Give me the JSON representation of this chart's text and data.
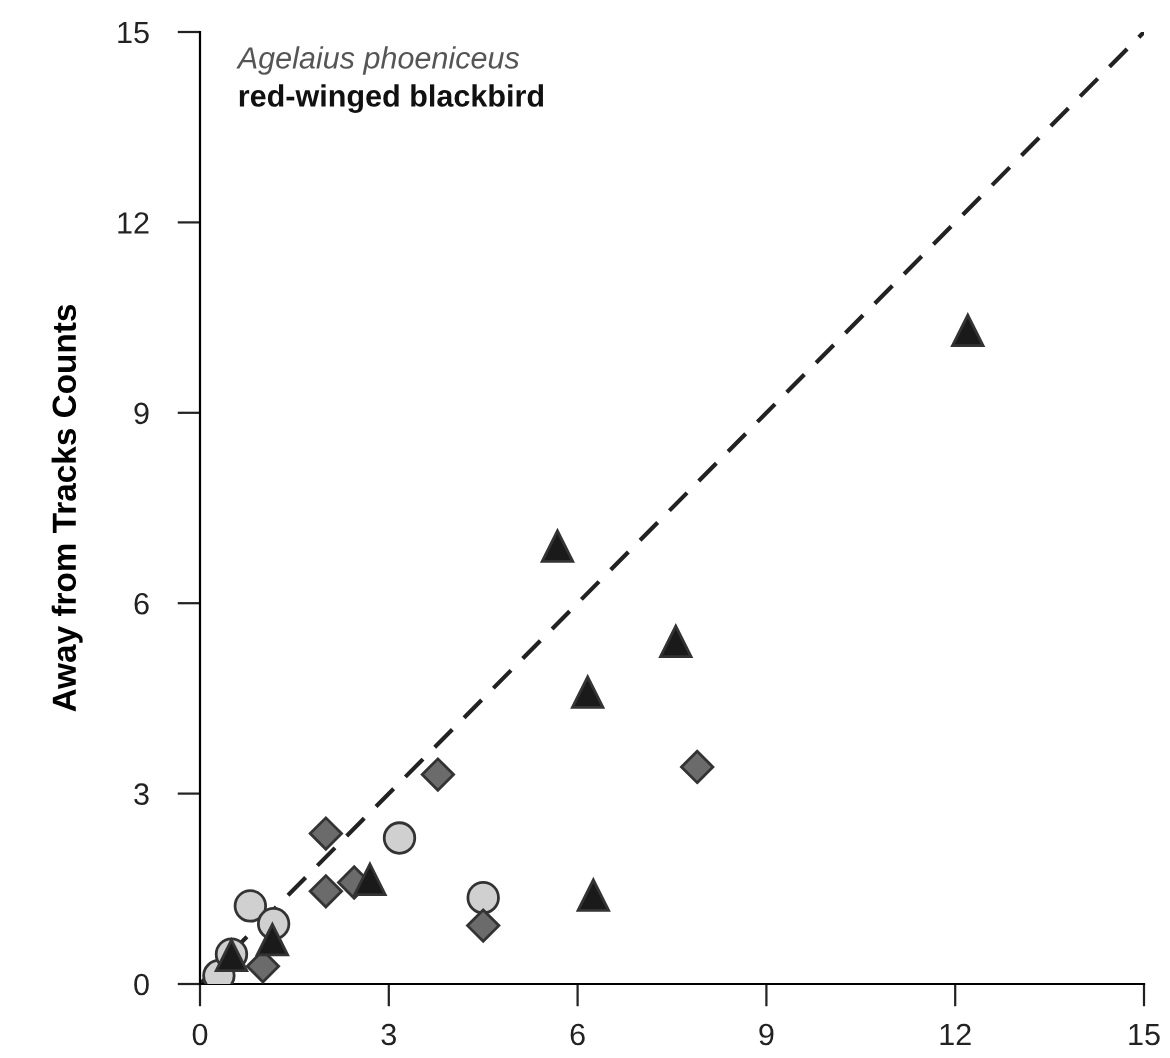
{
  "chart_data": {
    "type": "scatter",
    "title": "Agelaius phoeniceus",
    "subtitle": "red-winged blackbird",
    "ylabel": "Away from Tracks Counts",
    "xlim": [
      0,
      15
    ],
    "ylim": [
      0,
      15
    ],
    "xticks": [
      0,
      3,
      6,
      9,
      12,
      15
    ],
    "yticks": [
      0,
      3,
      6,
      9,
      12,
      15
    ],
    "grid": false,
    "legend": false,
    "series": [
      {
        "type": "line",
        "color": "#222222",
        "line_style": "dashed",
        "marker": "none",
        "x": [
          0,
          15
        ],
        "values": [
          0,
          15
        ]
      },
      {
        "color": "#1a1a1a",
        "marker": "triangle",
        "x": [
          5.68,
          6.16,
          7.56,
          6.25,
          12.2,
          2.7,
          1.15,
          0.5
        ],
        "values": [
          6.9,
          4.6,
          5.4,
          1.4,
          10.3,
          1.65,
          0.7,
          0.45
        ]
      },
      {
        "color": "#6b6b6b",
        "marker": "diamond",
        "x": [
          2.0,
          2.0,
          2.45,
          3.78,
          4.5,
          1.0,
          7.9
        ],
        "values": [
          2.37,
          1.46,
          1.6,
          3.3,
          0.92,
          0.28,
          3.42
        ]
      },
      {
        "color": "#d0d0d0",
        "marker": "circle",
        "x": [
          0.3,
          0.5,
          0.8,
          1.17,
          3.17,
          4.5
        ],
        "values": [
          0.13,
          0.47,
          1.23,
          0.95,
          2.3,
          1.36
        ]
      }
    ]
  }
}
